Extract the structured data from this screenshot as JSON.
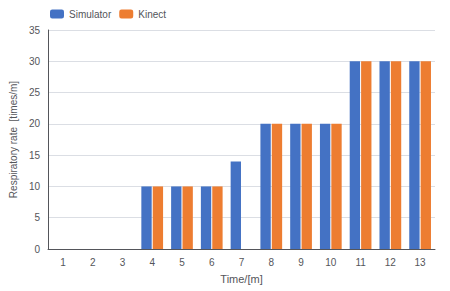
{
  "chart_data": {
    "type": "bar",
    "categories": [
      1,
      2,
      3,
      4,
      5,
      6,
      7,
      8,
      9,
      10,
      11,
      12,
      13
    ],
    "series": [
      {
        "name": "Simulator",
        "color": "#4472C4",
        "values": [
          0,
          0,
          0,
          10,
          10,
          10,
          14,
          20,
          20,
          20,
          30,
          30,
          30
        ]
      },
      {
        "name": "Kinect",
        "color": "#ED7D31",
        "values": [
          0,
          0,
          0,
          10,
          10,
          10,
          0,
          20,
          20,
          20,
          30,
          30,
          30
        ]
      }
    ],
    "xlabel": "Time/[m]",
    "ylabel": "Respiratory rate  [times/m]",
    "ylim": [
      0,
      35
    ],
    "yticks": [
      0,
      5,
      10,
      15,
      20,
      25,
      30,
      35
    ],
    "grid": true,
    "legend": "upper left"
  }
}
